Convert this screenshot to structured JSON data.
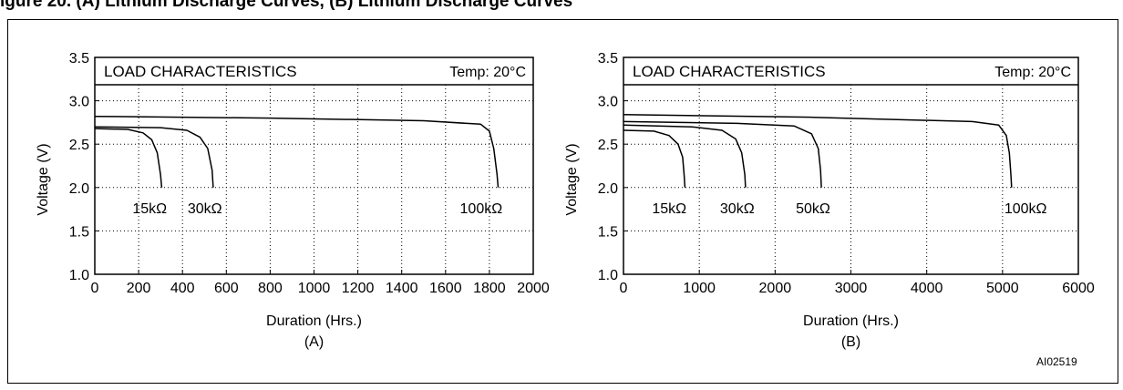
{
  "figure": {
    "caption": "igure 20. (A) Lithium Discharge Curves, (B) Lithium Discharge Curves",
    "id_label": "AI02519"
  },
  "chart_data": [
    {
      "type": "line",
      "title": "LOAD CHARACTERISTICS",
      "annotation": "Temp: 20°C",
      "xlabel": "Duration (Hrs.)",
      "ylabel": "Voltage (V)",
      "panel_label": "(A)",
      "xlim": [
        0,
        2000
      ],
      "ylim": [
        1.0,
        3.5
      ],
      "xticks": [
        0,
        200,
        400,
        600,
        800,
        1000,
        1200,
        1400,
        1600,
        1800,
        2000
      ],
      "yticks": [
        1.0,
        1.5,
        2.0,
        2.5,
        3.0,
        3.5
      ],
      "grid": true,
      "series": [
        {
          "name": "15kΩ",
          "x": [
            0,
            150,
            220,
            260,
            285,
            300,
            305
          ],
          "y": [
            2.68,
            2.67,
            2.63,
            2.55,
            2.4,
            2.15,
            2.0
          ]
        },
        {
          "name": "30kΩ",
          "x": [
            0,
            300,
            420,
            480,
            515,
            535,
            540
          ],
          "y": [
            2.7,
            2.69,
            2.66,
            2.58,
            2.45,
            2.2,
            2.0
          ]
        },
        {
          "name": "100kΩ",
          "x": [
            0,
            800,
            1500,
            1760,
            1800,
            1820,
            1835,
            1840
          ],
          "y": [
            2.82,
            2.8,
            2.77,
            2.73,
            2.65,
            2.45,
            2.15,
            2.0
          ]
        }
      ]
    },
    {
      "type": "line",
      "title": "LOAD CHARACTERISTICS",
      "annotation": "Temp: 20°C",
      "xlabel": "Duration (Hrs.)",
      "ylabel": "Voltage (V)",
      "panel_label": "(B)",
      "xlim": [
        0,
        6000
      ],
      "ylim": [
        1.0,
        3.5
      ],
      "xticks": [
        0,
        1000,
        2000,
        3000,
        4000,
        5000,
        6000
      ],
      "yticks": [
        1.0,
        1.5,
        2.0,
        2.5,
        3.0,
        3.5
      ],
      "grid": true,
      "series": [
        {
          "name": "15kΩ",
          "x": [
            0,
            400,
            600,
            720,
            780,
            800,
            810
          ],
          "y": [
            2.66,
            2.65,
            2.6,
            2.5,
            2.35,
            2.15,
            2.0
          ]
        },
        {
          "name": "30kΩ",
          "x": [
            0,
            900,
            1300,
            1480,
            1560,
            1600,
            1610
          ],
          "y": [
            2.72,
            2.7,
            2.66,
            2.56,
            2.4,
            2.15,
            2.0
          ]
        },
        {
          "name": "50kΩ",
          "x": [
            0,
            1500,
            2250,
            2480,
            2570,
            2600,
            2610
          ],
          "y": [
            2.76,
            2.74,
            2.71,
            2.62,
            2.45,
            2.2,
            2.0
          ]
        },
        {
          "name": "100kΩ",
          "x": [
            0,
            2500,
            4600,
            4950,
            5050,
            5090,
            5110,
            5120
          ],
          "y": [
            2.84,
            2.81,
            2.76,
            2.72,
            2.6,
            2.4,
            2.15,
            2.0
          ]
        }
      ]
    }
  ]
}
